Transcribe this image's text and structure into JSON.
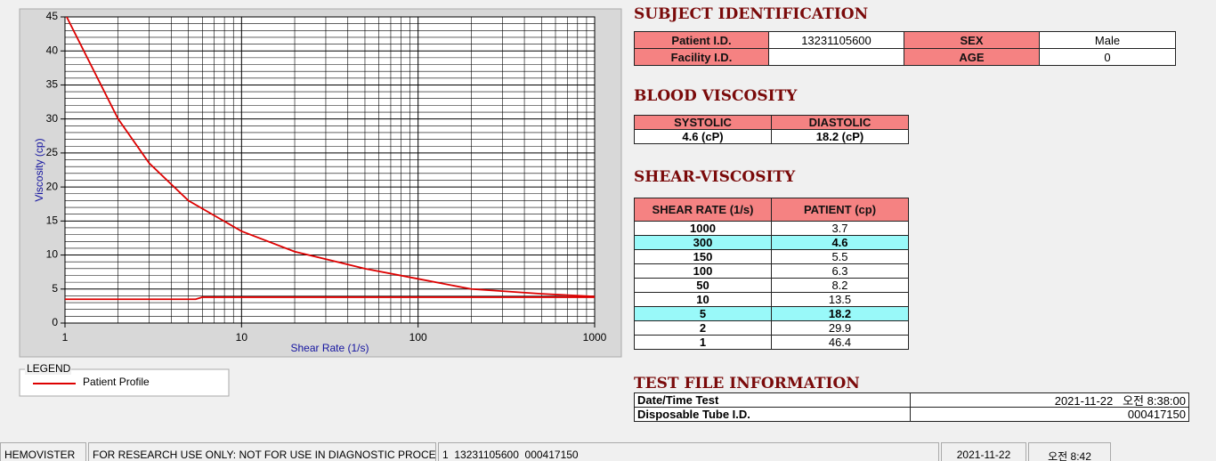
{
  "chart_data": {
    "type": "line",
    "xlabel": "Shear Rate (1/s)",
    "ylabel": "Viscosity (cp)",
    "xlog": true,
    "grid": true,
    "xlim": [
      1,
      1000
    ],
    "ylim": [
      0,
      45
    ],
    "xticks": [
      1,
      10,
      100,
      1000
    ],
    "yticks": [
      0,
      5,
      10,
      15,
      20,
      25,
      30,
      35,
      40,
      45
    ],
    "xminorticks": [
      2,
      3,
      4,
      5,
      6,
      7,
      8,
      9,
      20,
      30,
      40,
      50,
      60,
      70,
      80,
      90,
      200,
      300,
      400,
      500,
      600,
      700,
      800,
      900
    ],
    "yminorticks": [
      1,
      2,
      3,
      4,
      6,
      7,
      8,
      9,
      11,
      12,
      13,
      14,
      16,
      17,
      18,
      19,
      21,
      22,
      23,
      24,
      26,
      27,
      28,
      29,
      31,
      32,
      33,
      34,
      36,
      37,
      38,
      39,
      41,
      42,
      43,
      44
    ],
    "series": [
      {
        "name": "Patient Profile",
        "color": "#dd0000",
        "x": [
          1,
          2,
          3,
          5,
          10,
          20,
          50,
          100,
          200,
          500,
          1000
        ],
        "values": [
          45.5,
          30,
          23.5,
          18,
          13.5,
          10.5,
          8,
          6.5,
          5,
          4.3,
          3.9
        ]
      },
      {
        "color": "#dd0000",
        "x": [
          1,
          5.5,
          6,
          1000
        ],
        "values": [
          3.5,
          3.5,
          3.8,
          3.8
        ]
      }
    ]
  },
  "legend": {
    "title": "LEGEND"
  },
  "subject": {
    "title": "SUBJECT IDENTIFICATION",
    "rows": [
      [
        "Patient I.D.",
        "13231105600",
        "SEX",
        "Male"
      ],
      [
        "Facility I.D.",
        null,
        "AGE",
        "0"
      ]
    ]
  },
  "blood_viscosity": {
    "title": "BLOOD VISCOSITY",
    "headers": [
      "SYSTOLIC",
      "DIASTOLIC"
    ],
    "values": [
      "4.6 (cP)",
      "18.2 (cP)"
    ]
  },
  "shear_viscosity": {
    "title": "SHEAR-VISCOSITY",
    "headers": [
      "SHEAR RATE (1/s)",
      "PATIENT (cp)"
    ],
    "rows": [
      {
        "cells": [
          "1000",
          "3.7"
        ]
      },
      {
        "cells": [
          "300",
          "4.6"
        ],
        "highlight": true
      },
      {
        "cells": [
          "150",
          "5.5"
        ]
      },
      {
        "cells": [
          "100",
          "6.3"
        ]
      },
      {
        "cells": [
          "50",
          "8.2"
        ]
      },
      {
        "cells": [
          "10",
          "13.5"
        ]
      },
      {
        "cells": [
          "5",
          "18.2"
        ],
        "highlight": true
      },
      {
        "cells": [
          "2",
          "29.9"
        ]
      },
      {
        "cells": [
          "1",
          "46.4"
        ]
      }
    ]
  },
  "test_file": {
    "title": "TEST FILE INFORMATION",
    "rows": [
      [
        "Date/Time Test",
        "2021-11-22   오전 8:38:00"
      ],
      [
        "Disposable Tube I.D.",
        "000417150"
      ]
    ]
  },
  "status_bar": [
    "HEMOVISTER",
    "FOR RESEARCH USE ONLY: NOT FOR USE IN DIAGNOSTIC PROCEDURES",
    "1  13231105600  000417150",
    "2021-11-22",
    "오전 8:42"
  ]
}
